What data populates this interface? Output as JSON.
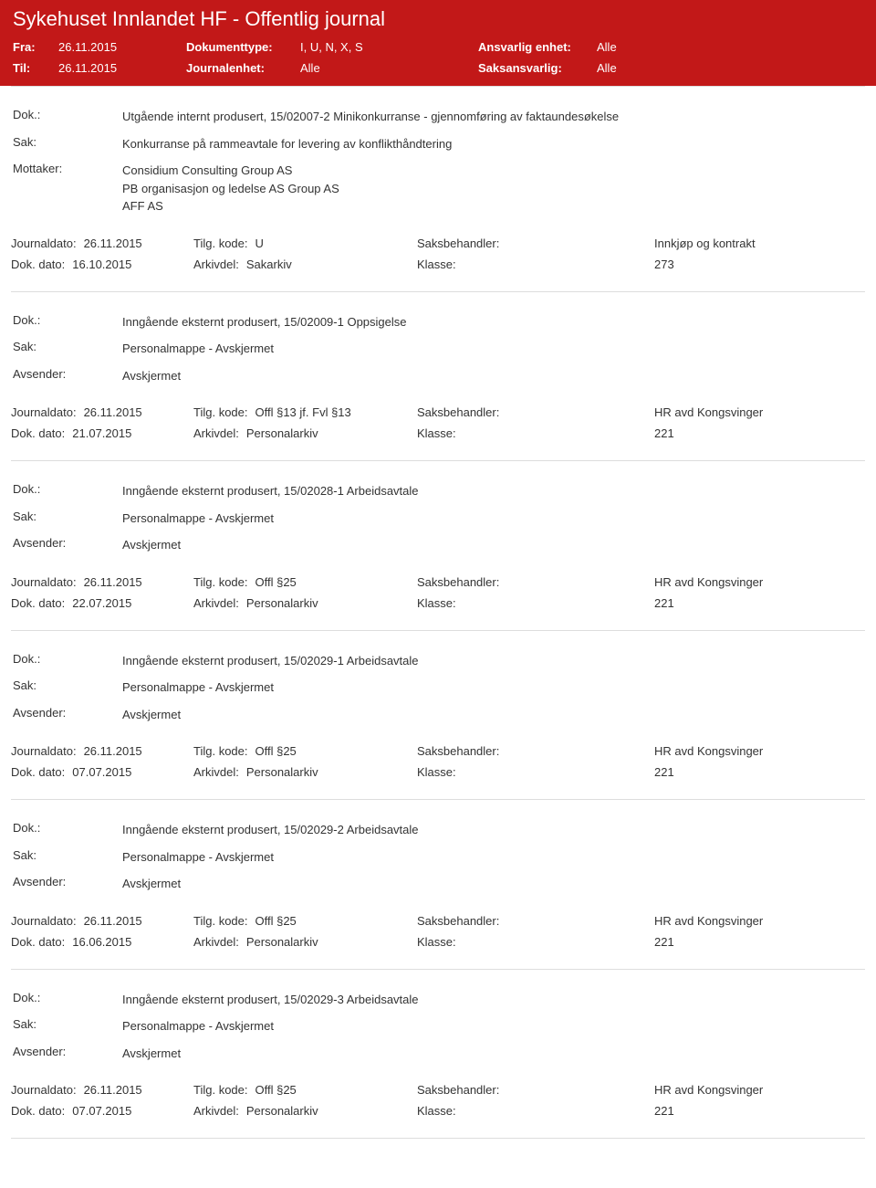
{
  "colors": {
    "brand": "#c21818",
    "border": "#dddddd",
    "text": "#333333",
    "bg": "#ffffff"
  },
  "header": {
    "title": "Sykehuset Innlandet HF - Offentlig journal"
  },
  "filters": {
    "fra_label": "Fra:",
    "fra_value": "26.11.2015",
    "til_label": "Til:",
    "til_value": "26.11.2015",
    "doktype_label": "Dokumenttype:",
    "doktype_value": "I, U, N, X, S",
    "journalenhet_label": "Journalenhet:",
    "journalenhet_value": "Alle",
    "ansvarlig_label": "Ansvarlig enhet:",
    "ansvarlig_value": "Alle",
    "saksansvarlig_label": "Saksansvarlig:",
    "saksansvarlig_value": "Alle"
  },
  "labels": {
    "dok": "Dok.:",
    "sak": "Sak:",
    "mottaker": "Mottaker:",
    "avsender": "Avsender:",
    "journaldato": "Journaldato:",
    "tilgkode": "Tilg. kode:",
    "saksbehandler": "Saksbehandler:",
    "dokdato": "Dok. dato:",
    "arkivdel": "Arkivdel:",
    "klasse": "Klasse:"
  },
  "entries": [
    {
      "dok": "Utgående internt produsert, 15/02007-2 Minikonkurranse - gjennomføring av faktaundesøkelse",
      "sak": "Konkurranse på rammeavtale for levering av konflikthåndtering",
      "party_label": "Mottaker:",
      "party_value": "Considium Consulting Group AS\nPB organisasjon og ledelse AS Group AS\nAFF AS",
      "journaldato": "26.11.2015",
      "tilgkode": "U",
      "saksbehandler": "Innkjøp og kontrakt",
      "dokdato": "16.10.2015",
      "arkivdel": "Sakarkiv",
      "klasse": "273"
    },
    {
      "dok": "Inngående eksternt produsert, 15/02009-1 Oppsigelse",
      "sak": "Personalmappe - Avskjermet",
      "party_label": "Avsender:",
      "party_value": "Avskjermet",
      "journaldato": "26.11.2015",
      "tilgkode": "Offl §13 jf. Fvl §13",
      "saksbehandler": "HR avd Kongsvinger",
      "dokdato": "21.07.2015",
      "arkivdel": "Personalarkiv",
      "klasse": "221"
    },
    {
      "dok": "Inngående eksternt produsert, 15/02028-1 Arbeidsavtale",
      "sak": "Personalmappe - Avskjermet",
      "party_label": "Avsender:",
      "party_value": "Avskjermet",
      "journaldato": "26.11.2015",
      "tilgkode": "Offl §25",
      "saksbehandler": "HR avd Kongsvinger",
      "dokdato": "22.07.2015",
      "arkivdel": "Personalarkiv",
      "klasse": "221"
    },
    {
      "dok": "Inngående eksternt produsert, 15/02029-1 Arbeidsavtale",
      "sak": "Personalmappe - Avskjermet",
      "party_label": "Avsender:",
      "party_value": "Avskjermet",
      "journaldato": "26.11.2015",
      "tilgkode": "Offl §25",
      "saksbehandler": "HR avd Kongsvinger",
      "dokdato": "07.07.2015",
      "arkivdel": "Personalarkiv",
      "klasse": "221"
    },
    {
      "dok": "Inngående eksternt produsert, 15/02029-2 Arbeidsavtale",
      "sak": "Personalmappe - Avskjermet",
      "party_label": "Avsender:",
      "party_value": "Avskjermet",
      "journaldato": "26.11.2015",
      "tilgkode": "Offl §25",
      "saksbehandler": "HR avd Kongsvinger",
      "dokdato": "16.06.2015",
      "arkivdel": "Personalarkiv",
      "klasse": "221"
    },
    {
      "dok": "Inngående eksternt produsert, 15/02029-3 Arbeidsavtale",
      "sak": "Personalmappe - Avskjermet",
      "party_label": "Avsender:",
      "party_value": "Avskjermet",
      "journaldato": "26.11.2015",
      "tilgkode": "Offl §25",
      "saksbehandler": "HR avd Kongsvinger",
      "dokdato": "07.07.2015",
      "arkivdel": "Personalarkiv",
      "klasse": "221"
    }
  ]
}
